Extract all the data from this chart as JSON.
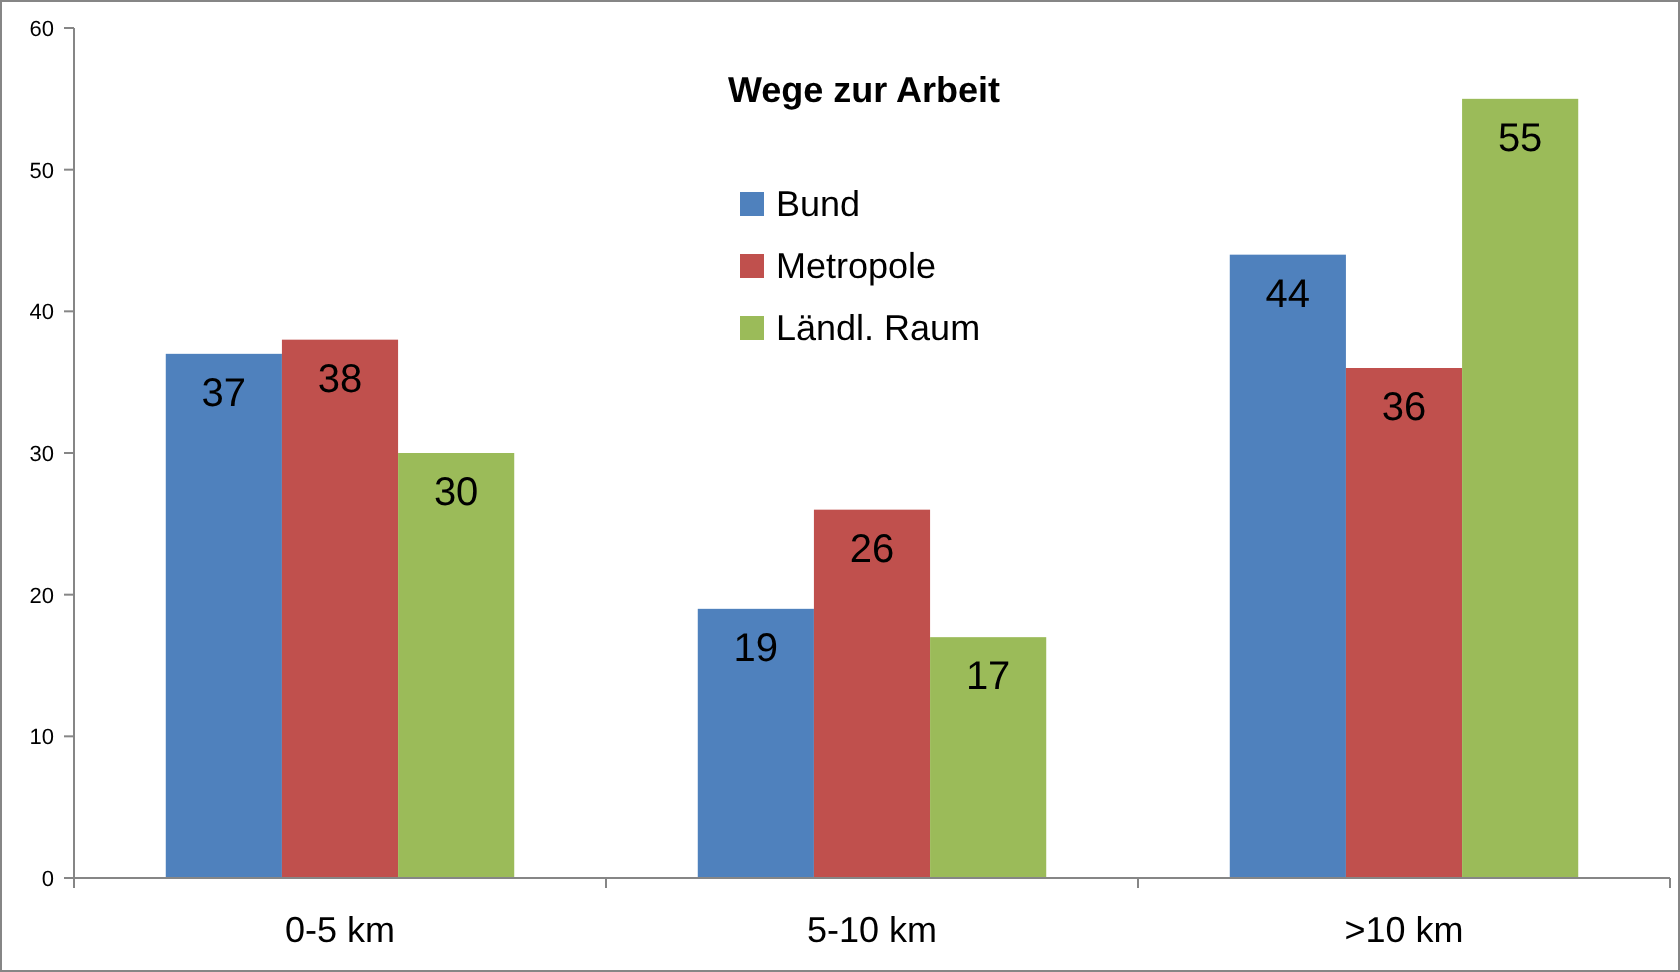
{
  "chart_data": {
    "type": "bar",
    "title": "Wege zur Arbeit",
    "categories": [
      "0-5 km",
      "5-10 km",
      ">10 km"
    ],
    "series": [
      {
        "name": "Bund",
        "color": "#4f81bd",
        "values": [
          37,
          19,
          44
        ]
      },
      {
        "name": "Metropole",
        "color": "#c0504d",
        "values": [
          38,
          26,
          36
        ]
      },
      {
        "name": "Ländl. Raum",
        "color": "#9bbb59",
        "values": [
          30,
          17,
          55
        ]
      }
    ],
    "ylim": [
      0,
      60
    ],
    "yticks": [
      0,
      10,
      20,
      30,
      40,
      50,
      60
    ],
    "grid": false,
    "legend": "top",
    "data_labels": true
  }
}
